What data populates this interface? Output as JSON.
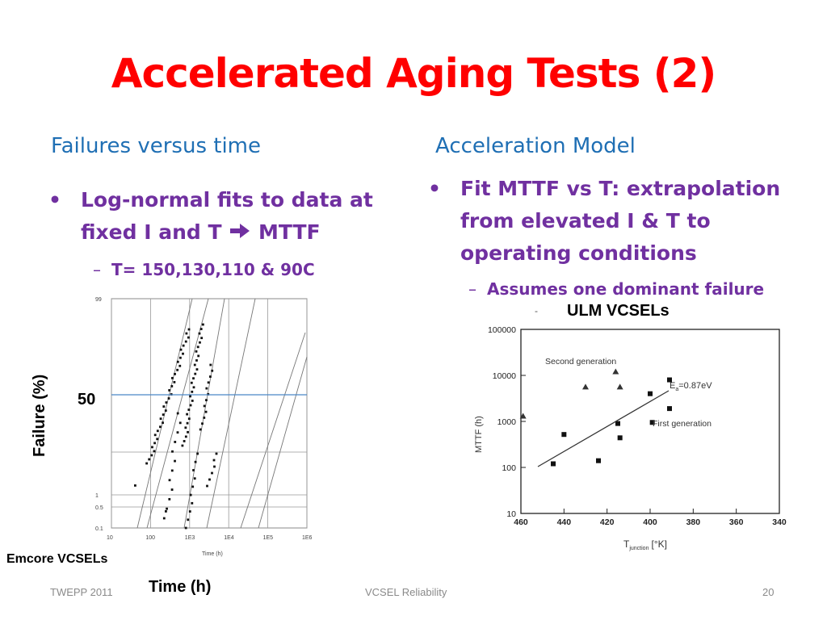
{
  "title": "Accelerated Aging Tests (2)",
  "left": {
    "heading": "Failures versus time",
    "bullet_line1": "Log-normal fits to data at",
    "bullet_line2_a": "fixed I and T",
    "bullet_line2_b": "MTTF",
    "sub": "T= 150,130,110 & 90C"
  },
  "right": {
    "heading": "Acceleration Model",
    "bullet_line1": "Fit MTTF vs T: extrapolation",
    "bullet_line2": "from elevated I & T to",
    "bullet_line3": "operating conditions",
    "sub": "Assumes one dominant failure"
  },
  "icons": {
    "arrow": "arrow-right-icon",
    "bullet": "bullet-dot-icon"
  },
  "colors": {
    "title": "#ff0000",
    "heading": "#1f6fb4",
    "bullet": "#7030a0"
  },
  "chart_data": [
    {
      "type": "scatter",
      "caption": "Emcore VCSELs",
      "xlabel_big": "Time (h)",
      "xlabel_small": "Time (h)",
      "ylabel": "Failure (%)",
      "y_marker": "50",
      "x_ticks": [
        "10",
        "100",
        "1E3",
        "1E4",
        "1E5",
        "1E6"
      ],
      "y_ticks": [
        "99",
        "1",
        "0.5",
        "0.1"
      ],
      "x_scale": "log",
      "xlim": [
        10,
        1000000
      ]
    },
    {
      "type": "scatter",
      "caption": "ULM VCSELs",
      "xlabel": "T",
      "xlabel_sub": "junction",
      "xlabel_unit": "[°K]",
      "ylabel": "MTTF (h)",
      "annotation_ea": "E",
      "annotation_ea_sub": "a",
      "annotation_ea_val": "=0.87eV",
      "x_ticks": [
        "460",
        "440",
        "420",
        "400",
        "380",
        "360",
        "340"
      ],
      "y_ticks": [
        "100000",
        "10000",
        "1000",
        "100",
        "10"
      ],
      "y_scale": "log",
      "xlim": [
        460,
        340
      ],
      "ylim": [
        10,
        100000
      ],
      "series": [
        {
          "name": "Second generation",
          "marker": "triangle",
          "points": [
            [
              459,
              1300
            ],
            [
              430,
              5600
            ],
            [
              416,
              12000
            ],
            [
              414,
              5600
            ]
          ]
        },
        {
          "name": "First generation",
          "marker": "square",
          "points": [
            [
              445,
              120
            ],
            [
              440,
              520
            ],
            [
              424,
              140
            ],
            [
              415,
              900
            ],
            [
              414,
              440
            ],
            [
              400,
              4000
            ],
            [
              399,
              950
            ],
            [
              391,
              8000
            ],
            [
              391,
              1900
            ]
          ]
        }
      ]
    }
  ],
  "footer": {
    "left": "TWEPP 2011",
    "center": "VCSEL Reliability",
    "right": "20"
  }
}
